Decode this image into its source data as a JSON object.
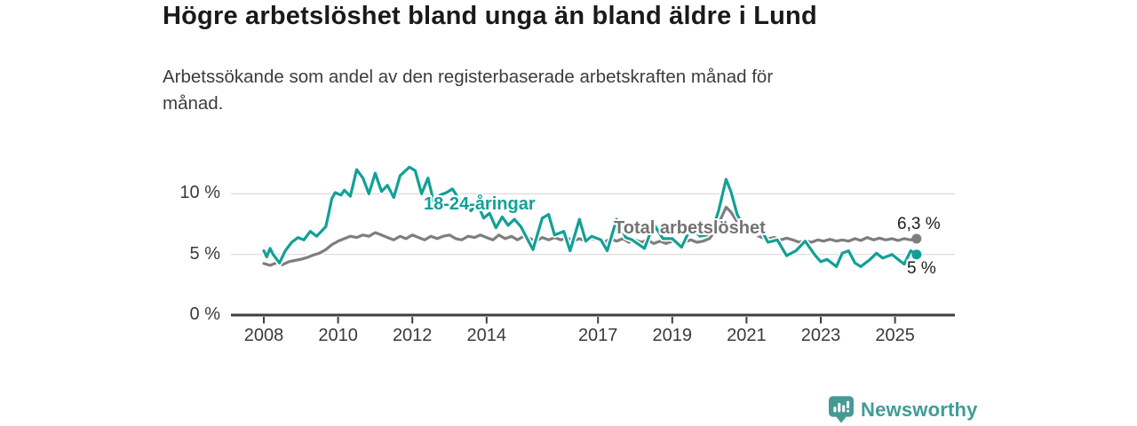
{
  "header": {
    "title": "Högre arbetslöshet bland unga än bland äldre i Lund",
    "subtitle": "Arbetssökande som andel av den registerbaserade arbetskraften månad för månad."
  },
  "colors": {
    "youth_teal": "#12a096",
    "total_gray": "#7e7e7e",
    "total_label_gray": "#737373",
    "axis_dark": "#3f3f3f",
    "gridline": "#d9d9d9",
    "brand_teal": "#459a94"
  },
  "chart_data": {
    "type": "line",
    "title": "Högre arbetslöshet bland unga än bland äldre i Lund",
    "xlabel": "",
    "ylabel": "%",
    "xlim": [
      2007.5,
      2026.1
    ],
    "ylim": [
      0,
      13
    ],
    "grid": "horizontal",
    "legend_position": "inline-labels",
    "y_ticks": [
      {
        "value": 0,
        "label": "0 %"
      },
      {
        "value": 5,
        "label": "5 %"
      },
      {
        "value": 10,
        "label": "10 %"
      }
    ],
    "x_ticks": [
      {
        "value": 2008,
        "label": "2008"
      },
      {
        "value": 2010,
        "label": "2010"
      },
      {
        "value": 2012,
        "label": "2012"
      },
      {
        "value": 2014,
        "label": "2014"
      },
      {
        "value": 2017,
        "label": "2017"
      },
      {
        "value": 2019,
        "label": "2019"
      },
      {
        "value": 2021,
        "label": "2021"
      },
      {
        "value": 2023,
        "label": "2023"
      },
      {
        "value": 2025,
        "label": "2025"
      }
    ],
    "series": [
      {
        "name": "18-24-åringar",
        "color": "#12a096",
        "end_label": "5 %",
        "end_value": 5.0,
        "points": [
          [
            2008.0,
            5.3
          ],
          [
            2008.08,
            4.8
          ],
          [
            2008.17,
            5.5
          ],
          [
            2008.25,
            5.0
          ],
          [
            2008.42,
            4.3
          ],
          [
            2008.58,
            5.3
          ],
          [
            2008.75,
            6.0
          ],
          [
            2008.92,
            6.4
          ],
          [
            2009.08,
            6.2
          ],
          [
            2009.25,
            6.9
          ],
          [
            2009.42,
            6.5
          ],
          [
            2009.58,
            7.0
          ],
          [
            2009.67,
            7.3
          ],
          [
            2009.75,
            8.4
          ],
          [
            2009.83,
            9.6
          ],
          [
            2009.92,
            10.1
          ],
          [
            2010.08,
            9.9
          ],
          [
            2010.17,
            10.3
          ],
          [
            2010.33,
            9.8
          ],
          [
            2010.5,
            12.0
          ],
          [
            2010.67,
            11.3
          ],
          [
            2010.83,
            10.0
          ],
          [
            2011.0,
            11.7
          ],
          [
            2011.17,
            10.2
          ],
          [
            2011.33,
            10.7
          ],
          [
            2011.5,
            9.7
          ],
          [
            2011.67,
            11.5
          ],
          [
            2011.92,
            12.2
          ],
          [
            2012.08,
            11.9
          ],
          [
            2012.25,
            10.0
          ],
          [
            2012.42,
            11.3
          ],
          [
            2012.58,
            9.3
          ],
          [
            2012.75,
            9.9
          ],
          [
            2012.92,
            10.1
          ],
          [
            2013.08,
            10.4
          ],
          [
            2013.25,
            9.6
          ],
          [
            2013.42,
            9.0
          ],
          [
            2013.58,
            8.6
          ],
          [
            2013.75,
            9.2
          ],
          [
            2013.92,
            8.0
          ],
          [
            2014.08,
            8.4
          ],
          [
            2014.25,
            7.2
          ],
          [
            2014.42,
            8.1
          ],
          [
            2014.58,
            7.4
          ],
          [
            2014.75,
            7.9
          ],
          [
            2014.92,
            7.3
          ],
          [
            2015.25,
            5.4
          ],
          [
            2015.5,
            8.0
          ],
          [
            2015.67,
            8.3
          ],
          [
            2015.83,
            6.6
          ],
          [
            2016.08,
            6.9
          ],
          [
            2016.25,
            5.3
          ],
          [
            2016.5,
            7.9
          ],
          [
            2016.67,
            6.1
          ],
          [
            2016.83,
            6.5
          ],
          [
            2017.08,
            6.2
          ],
          [
            2017.25,
            5.3
          ],
          [
            2017.5,
            7.9
          ],
          [
            2017.75,
            6.4
          ],
          [
            2017.92,
            6.2
          ],
          [
            2018.25,
            5.5
          ],
          [
            2018.5,
            7.5
          ],
          [
            2018.75,
            6.3
          ],
          [
            2019.0,
            6.3
          ],
          [
            2019.25,
            5.6
          ],
          [
            2019.5,
            7.2
          ],
          [
            2019.75,
            6.5
          ],
          [
            2019.92,
            6.6
          ],
          [
            2020.08,
            7.0
          ],
          [
            2020.25,
            8.6
          ],
          [
            2020.45,
            11.2
          ],
          [
            2020.58,
            10.2
          ],
          [
            2020.75,
            8.3
          ],
          [
            2020.92,
            7.3
          ],
          [
            2021.08,
            7.0
          ],
          [
            2021.25,
            6.7
          ],
          [
            2021.42,
            6.9
          ],
          [
            2021.58,
            6.0
          ],
          [
            2021.83,
            6.2
          ],
          [
            2022.08,
            4.9
          ],
          [
            2022.33,
            5.3
          ],
          [
            2022.58,
            6.1
          ],
          [
            2022.83,
            5.0
          ],
          [
            2023.0,
            4.4
          ],
          [
            2023.17,
            4.6
          ],
          [
            2023.42,
            4.0
          ],
          [
            2023.58,
            5.1
          ],
          [
            2023.75,
            5.3
          ],
          [
            2023.92,
            4.3
          ],
          [
            2024.08,
            4.0
          ],
          [
            2024.33,
            4.6
          ],
          [
            2024.5,
            5.1
          ],
          [
            2024.67,
            4.7
          ],
          [
            2024.92,
            5.0
          ],
          [
            2025.08,
            4.6
          ],
          [
            2025.25,
            4.2
          ],
          [
            2025.42,
            5.3
          ],
          [
            2025.58,
            5.0
          ]
        ]
      },
      {
        "name": "Total arbetslöshet",
        "color": "#7e7e7e",
        "end_label": "6,3 %",
        "end_value": 6.3,
        "points": [
          [
            2008.0,
            4.25
          ],
          [
            2008.17,
            4.1
          ],
          [
            2008.33,
            4.3
          ],
          [
            2008.5,
            4.15
          ],
          [
            2008.67,
            4.4
          ],
          [
            2008.83,
            4.5
          ],
          [
            2009.0,
            4.6
          ],
          [
            2009.17,
            4.75
          ],
          [
            2009.33,
            4.95
          ],
          [
            2009.5,
            5.1
          ],
          [
            2009.67,
            5.4
          ],
          [
            2009.83,
            5.8
          ],
          [
            2010.0,
            6.1
          ],
          [
            2010.17,
            6.3
          ],
          [
            2010.33,
            6.5
          ],
          [
            2010.5,
            6.4
          ],
          [
            2010.67,
            6.6
          ],
          [
            2010.83,
            6.5
          ],
          [
            2011.0,
            6.8
          ],
          [
            2011.17,
            6.6
          ],
          [
            2011.33,
            6.4
          ],
          [
            2011.5,
            6.2
          ],
          [
            2011.67,
            6.5
          ],
          [
            2011.83,
            6.3
          ],
          [
            2012.0,
            6.6
          ],
          [
            2012.17,
            6.4
          ],
          [
            2012.33,
            6.2
          ],
          [
            2012.5,
            6.5
          ],
          [
            2012.67,
            6.3
          ],
          [
            2012.83,
            6.5
          ],
          [
            2013.0,
            6.6
          ],
          [
            2013.17,
            6.3
          ],
          [
            2013.33,
            6.2
          ],
          [
            2013.5,
            6.5
          ],
          [
            2013.67,
            6.4
          ],
          [
            2013.83,
            6.6
          ],
          [
            2014.0,
            6.4
          ],
          [
            2014.17,
            6.2
          ],
          [
            2014.33,
            6.6
          ],
          [
            2014.5,
            6.3
          ],
          [
            2014.67,
            6.5
          ],
          [
            2014.83,
            6.2
          ],
          [
            2015.0,
            6.5
          ],
          [
            2015.17,
            6.3
          ],
          [
            2015.33,
            6.1
          ],
          [
            2015.5,
            6.4
          ],
          [
            2015.67,
            6.2
          ],
          [
            2015.83,
            6.4
          ],
          [
            2016.0,
            6.2
          ],
          [
            2016.17,
            6.4
          ],
          [
            2016.33,
            6.1
          ],
          [
            2016.5,
            6.3
          ],
          [
            2016.67,
            6.1
          ],
          [
            2016.83,
            6.3
          ],
          [
            2017.0,
            6.2
          ],
          [
            2017.17,
            6.0
          ],
          [
            2017.33,
            6.3
          ],
          [
            2017.5,
            6.1
          ],
          [
            2017.67,
            6.3
          ],
          [
            2017.83,
            6.0
          ],
          [
            2018.0,
            6.2
          ],
          [
            2018.17,
            6.0
          ],
          [
            2018.33,
            6.2
          ],
          [
            2018.5,
            5.9
          ],
          [
            2018.67,
            6.1
          ],
          [
            2018.83,
            5.9
          ],
          [
            2019.0,
            6.1
          ],
          [
            2019.17,
            5.9
          ],
          [
            2019.33,
            6.0
          ],
          [
            2019.5,
            6.2
          ],
          [
            2019.67,
            6.0
          ],
          [
            2019.83,
            6.1
          ],
          [
            2020.0,
            6.3
          ],
          [
            2020.17,
            7.0
          ],
          [
            2020.45,
            8.9
          ],
          [
            2020.58,
            8.5
          ],
          [
            2020.75,
            7.7
          ],
          [
            2020.92,
            7.0
          ],
          [
            2021.08,
            6.8
          ],
          [
            2021.25,
            6.6
          ],
          [
            2021.42,
            6.4
          ],
          [
            2021.58,
            6.3
          ],
          [
            2021.75,
            6.4
          ],
          [
            2021.92,
            6.2
          ],
          [
            2022.08,
            6.35
          ],
          [
            2022.25,
            6.2
          ],
          [
            2022.42,
            6.0
          ],
          [
            2022.58,
            6.15
          ],
          [
            2022.75,
            6.0
          ],
          [
            2022.92,
            6.2
          ],
          [
            2023.08,
            6.1
          ],
          [
            2023.25,
            6.25
          ],
          [
            2023.42,
            6.1
          ],
          [
            2023.58,
            6.2
          ],
          [
            2023.75,
            6.1
          ],
          [
            2023.92,
            6.3
          ],
          [
            2024.08,
            6.15
          ],
          [
            2024.25,
            6.4
          ],
          [
            2024.42,
            6.2
          ],
          [
            2024.58,
            6.35
          ],
          [
            2024.75,
            6.2
          ],
          [
            2024.92,
            6.3
          ],
          [
            2025.08,
            6.15
          ],
          [
            2025.25,
            6.3
          ],
          [
            2025.42,
            6.2
          ],
          [
            2025.58,
            6.3
          ]
        ]
      }
    ]
  },
  "footer": {
    "brand": "Newsworthy",
    "logo_icon": "bar-chart-speech-bubble-icon"
  }
}
